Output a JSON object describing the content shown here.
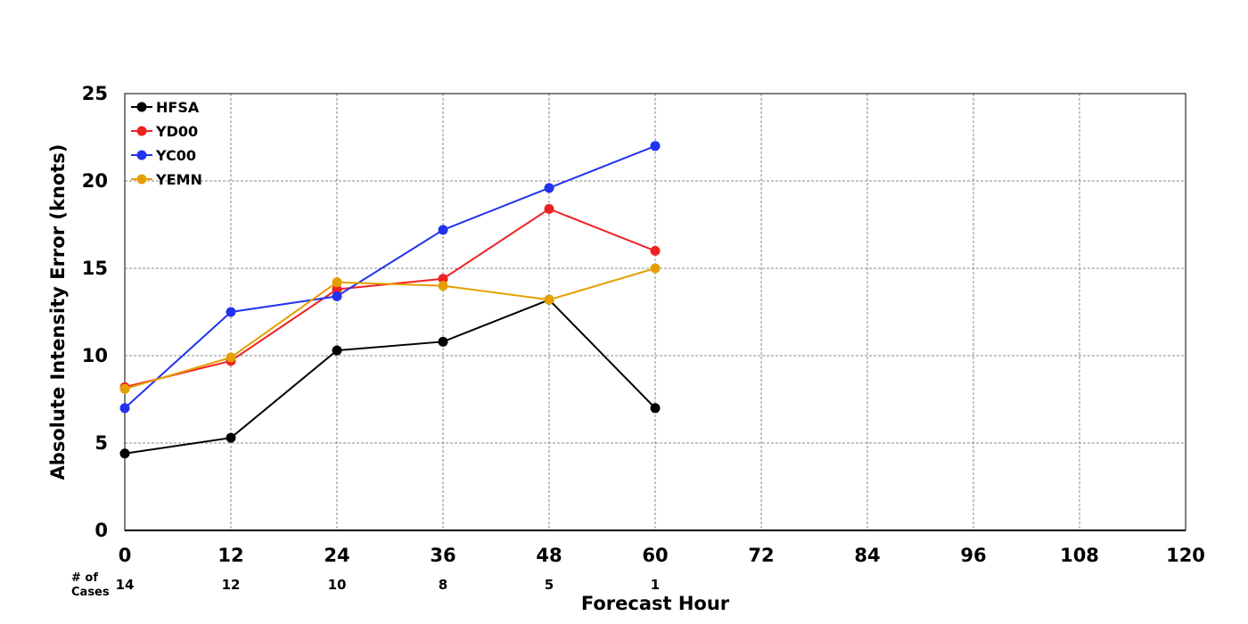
{
  "chart_data": {
    "type": "line",
    "ylabel": "Absolute Intensity Error (knots)",
    "xlabel": "Forecast Hour",
    "xlim": [
      0,
      120
    ],
    "ylim": [
      0,
      25
    ],
    "xticks": [
      0,
      12,
      24,
      36,
      48,
      60,
      72,
      84,
      96,
      108,
      120
    ],
    "yticks": [
      0,
      5,
      10,
      15,
      20,
      25
    ],
    "grid": true,
    "legend_position": "top-left",
    "cases_caption": [
      "# of",
      "Cases"
    ],
    "cases": [
      {
        "x": 0,
        "label": "14"
      },
      {
        "x": 12,
        "label": "12"
      },
      {
        "x": 24,
        "label": "10"
      },
      {
        "x": 36,
        "label": "8"
      },
      {
        "x": 48,
        "label": "5"
      },
      {
        "x": 60,
        "label": "1"
      }
    ],
    "x": [
      0,
      12,
      24,
      36,
      48,
      60
    ],
    "series": [
      {
        "name": "HFSA",
        "color": "#000000",
        "values": [
          4.4,
          5.3,
          10.3,
          10.8,
          13.2,
          7.0
        ]
      },
      {
        "name": "YD00",
        "color": "#ee2222",
        "values": [
          8.2,
          9.7,
          13.8,
          14.4,
          18.4,
          16.0
        ]
      },
      {
        "name": "YC00",
        "color": "#2233ee",
        "values": [
          7.0,
          12.5,
          13.4,
          17.2,
          19.6,
          22.0
        ]
      },
      {
        "name": "YEMN",
        "color": "#e69f00",
        "values": [
          8.1,
          9.9,
          14.2,
          14.0,
          13.2,
          15.0
        ]
      }
    ]
  }
}
